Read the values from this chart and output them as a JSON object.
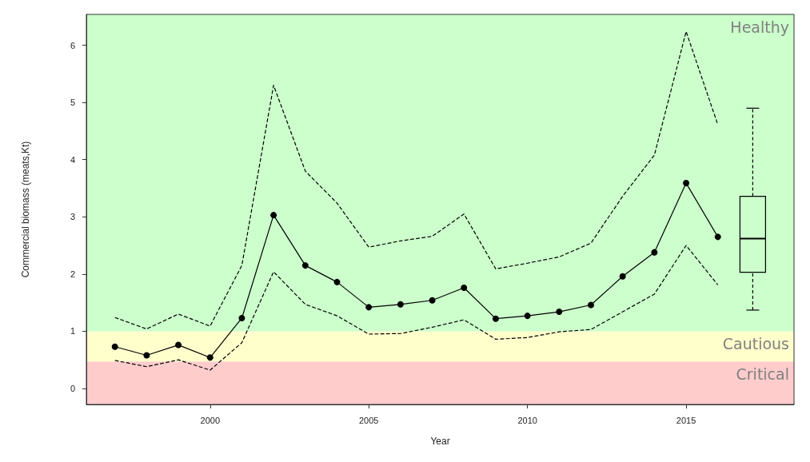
{
  "chart_data": {
    "type": "line",
    "xlabel": "Year",
    "ylabel": "Commercial biomass (meats,Kt)",
    "xlim": [
      1996.1,
      2018.4
    ],
    "ylim": [
      -0.28,
      6.54
    ],
    "xticks": [
      2000,
      2005,
      2010,
      2015
    ],
    "yticks": [
      0,
      1,
      2,
      3,
      4,
      5,
      6
    ],
    "grid": false,
    "bands": [
      {
        "axis": "y",
        "from": -0.28,
        "to": 0.47,
        "label": "Critical",
        "color": "#ffcccc"
      },
      {
        "axis": "y",
        "from": 0.47,
        "to": 1.0,
        "label": "Cautious",
        "color": "#ffffcc"
      },
      {
        "axis": "y",
        "from": 1.0,
        "to": 6.54,
        "label": "Healthy",
        "color": "#ccffcc"
      }
    ],
    "series": [
      {
        "color": "#000000",
        "marker": "circle",
        "line_style": "solid",
        "x": [
          1997,
          1998,
          1999,
          2000,
          2001,
          2002,
          2003,
          2004,
          2005,
          2006,
          2007,
          2008,
          2009,
          2010,
          2011,
          2012,
          2013,
          2014,
          2015,
          2016
        ],
        "values": [
          0.73,
          0.58,
          0.76,
          0.54,
          1.23,
          3.03,
          2.15,
          1.86,
          1.42,
          1.47,
          1.54,
          1.76,
          1.22,
          1.27,
          1.34,
          1.46,
          1.96,
          2.38,
          3.59,
          2.65
        ]
      },
      {
        "color": "#000000",
        "marker": "none",
        "line_style": "dashed",
        "x": [
          1997,
          1998,
          1999,
          2000,
          2001,
          2002,
          2003,
          2004,
          2005,
          2006,
          2007,
          2008,
          2009,
          2010,
          2011,
          2012,
          2013,
          2014,
          2015,
          2016
        ],
        "values": [
          1.24,
          1.04,
          1.3,
          1.09,
          2.15,
          5.3,
          3.8,
          3.24,
          2.47,
          2.58,
          2.66,
          3.05,
          2.09,
          2.19,
          2.3,
          2.54,
          3.36,
          4.08,
          6.24,
          4.61
        ]
      },
      {
        "color": "#000000",
        "marker": "none",
        "line_style": "dashed",
        "x": [
          1997,
          1998,
          1999,
          2000,
          2001,
          2002,
          2003,
          2004,
          2005,
          2006,
          2007,
          2008,
          2009,
          2010,
          2011,
          2012,
          2013,
          2014,
          2015,
          2016
        ],
        "values": [
          0.49,
          0.38,
          0.5,
          0.32,
          0.8,
          2.04,
          1.47,
          1.27,
          0.95,
          0.96,
          1.07,
          1.2,
          0.86,
          0.89,
          0.99,
          1.03,
          1.34,
          1.65,
          2.5,
          1.81
        ]
      },
      {
        "type": "box",
        "color": "#000000",
        "x": [
          2017.1
        ],
        "boxes": [
          {
            "low": 1.37,
            "q1": 2.03,
            "median": 2.62,
            "q3": 3.36,
            "high": 4.9
          }
        ]
      }
    ]
  }
}
